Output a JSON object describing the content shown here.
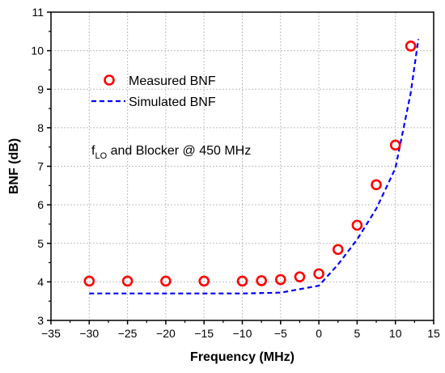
{
  "chart_data": {
    "type": "scatter",
    "xlabel": "Frequency (MHz)",
    "ylabel": "BNF (dB)",
    "xlim": [
      -35,
      15
    ],
    "ylim": [
      3,
      11
    ],
    "xticks": [
      -35,
      -30,
      -25,
      -20,
      -15,
      -10,
      -5,
      0,
      5,
      10,
      15
    ],
    "yticks": [
      3,
      4,
      5,
      6,
      7,
      8,
      9,
      10,
      11
    ],
    "grid": true,
    "legend_position": "upper-left",
    "series": [
      {
        "name": "Measured BNF",
        "kind": "markers",
        "marker": "open-circle",
        "color": "#ff0000",
        "x": [
          -30,
          -25,
          -20,
          -15,
          -10,
          -7.5,
          -5,
          -2.5,
          0,
          2.5,
          5,
          7.5,
          10,
          12
        ],
        "y": [
          4.02,
          4.02,
          4.02,
          4.02,
          4.02,
          4.03,
          4.06,
          4.13,
          4.21,
          4.84,
          5.47,
          6.52,
          7.55,
          10.12
        ]
      },
      {
        "name": "Simulated BNF",
        "kind": "dashed-line",
        "color": "#0000ff",
        "x": [
          -30,
          -25,
          -20,
          -15,
          -10,
          -5,
          0,
          2.5,
          5,
          7.5,
          10,
          12,
          13
        ],
        "y": [
          3.7,
          3.7,
          3.7,
          3.7,
          3.7,
          3.72,
          3.9,
          4.45,
          5.1,
          5.9,
          6.95,
          8.9,
          10.3
        ]
      }
    ],
    "annotation": {
      "main": "f",
      "sub": "LO",
      "rest": " and Blocker @ 450 MHz"
    }
  }
}
